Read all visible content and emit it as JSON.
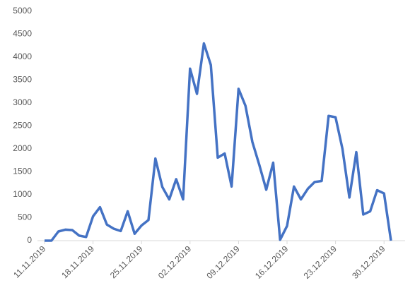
{
  "chart_data": {
    "type": "line",
    "categories": [
      "11.11.2019",
      null,
      null,
      null,
      null,
      null,
      null,
      "18.11.2019",
      null,
      null,
      null,
      null,
      null,
      null,
      "25.11.2019",
      null,
      null,
      null,
      null,
      null,
      null,
      "02.12.2019",
      null,
      null,
      null,
      null,
      null,
      null,
      "09.12.2019",
      null,
      null,
      null,
      null,
      null,
      null,
      "16.12.2019",
      null,
      null,
      null,
      null,
      null,
      null,
      "23.12.2019",
      null,
      null,
      null,
      null,
      null,
      null,
      "30.12.2019",
      null
    ],
    "series": [
      {
        "color": "#4472c4",
        "values": [
          0,
          0,
          200,
          240,
          230,
          110,
          80,
          530,
          730,
          350,
          260,
          210,
          640,
          150,
          330,
          450,
          1790,
          1170,
          900,
          1340,
          900,
          3750,
          3200,
          4300,
          3830,
          1810,
          1900,
          1180,
          3310,
          2940,
          2150,
          1650,
          1110,
          1700,
          20,
          320,
          1180,
          900,
          1130,
          1280,
          1300,
          2720,
          2690,
          2000,
          940,
          1930,
          570,
          640,
          1100,
          1030,
          0
        ]
      }
    ],
    "ylim": [
      0,
      5000
    ],
    "yticks": [
      0,
      500,
      1000,
      1500,
      2000,
      2500,
      3000,
      3500,
      4000,
      4500,
      5000
    ]
  }
}
